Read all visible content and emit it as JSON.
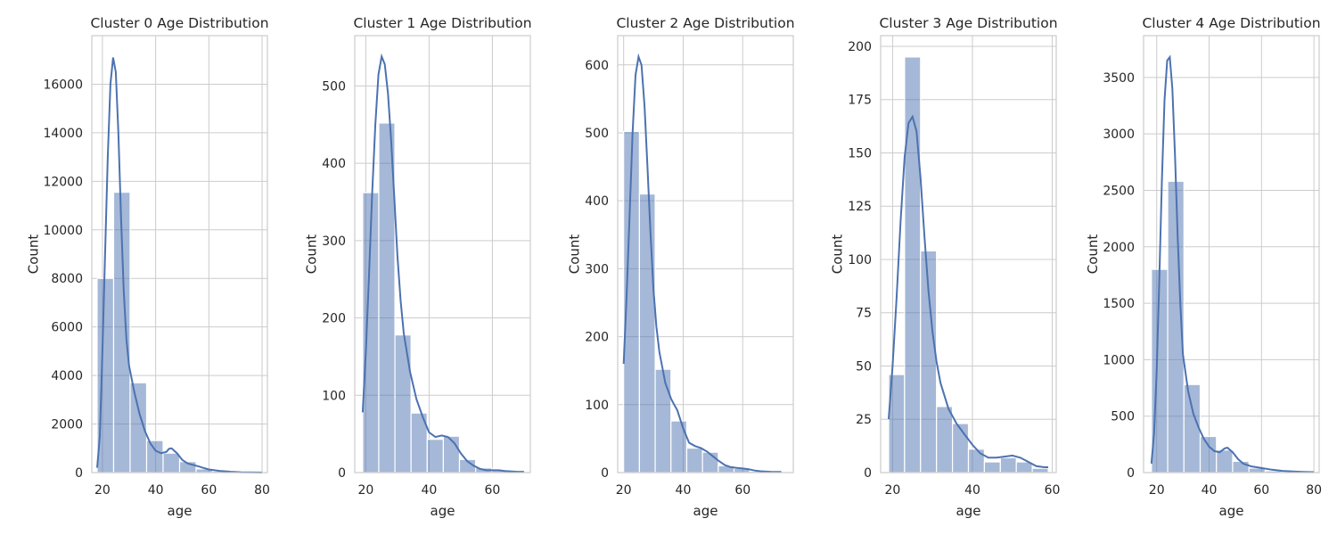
{
  "chart_data": [
    {
      "type": "bar",
      "title": "Cluster 0 Age Distribution",
      "xlabel": "age",
      "ylabel": "Count",
      "xlim": [
        16,
        82
      ],
      "ylim": [
        0,
        18000
      ],
      "xticks": [
        20,
        40,
        60,
        80
      ],
      "yticks": [
        0,
        2000,
        4000,
        6000,
        8000,
        10000,
        12000,
        14000,
        16000
      ],
      "grid": true,
      "bins": [
        [
          18,
          24.2
        ],
        [
          24.2,
          30.4
        ],
        [
          30.4,
          36.6
        ],
        [
          36.6,
          42.8
        ],
        [
          42.8,
          49
        ],
        [
          49,
          55.2
        ],
        [
          55.2,
          61.4
        ],
        [
          61.4,
          67.6
        ],
        [
          67.6,
          73.8
        ],
        [
          73.8,
          80
        ]
      ],
      "values": [
        8000,
        11550,
        3700,
        1320,
        800,
        450,
        150,
        60,
        20,
        10
      ],
      "kde": [
        [
          18,
          200
        ],
        [
          19,
          1500
        ],
        [
          20,
          5000
        ],
        [
          21,
          9000
        ],
        [
          22,
          13000
        ],
        [
          23,
          16000
        ],
        [
          24,
          17100
        ],
        [
          25,
          16500
        ],
        [
          26,
          14000
        ],
        [
          27,
          10500
        ],
        [
          28,
          7500
        ],
        [
          29,
          5500
        ],
        [
          30,
          4400
        ],
        [
          32,
          3300
        ],
        [
          34,
          2400
        ],
        [
          36,
          1700
        ],
        [
          38,
          1200
        ],
        [
          40,
          900
        ],
        [
          42,
          800
        ],
        [
          44,
          850
        ],
        [
          45,
          980
        ],
        [
          46,
          1000
        ],
        [
          48,
          800
        ],
        [
          50,
          520
        ],
        [
          52,
          380
        ],
        [
          54,
          320
        ],
        [
          56,
          260
        ],
        [
          58,
          190
        ],
        [
          60,
          130
        ],
        [
          64,
          70
        ],
        [
          68,
          35
        ],
        [
          72,
          15
        ],
        [
          76,
          8
        ],
        [
          80,
          5
        ]
      ]
    },
    {
      "type": "bar",
      "title": "Cluster 1 Age Distribution",
      "xlabel": "age",
      "ylabel": "Count",
      "xlim": [
        16.5,
        72
      ],
      "ylim": [
        0,
        565
      ],
      "xticks": [
        20,
        40,
        60
      ],
      "yticks": [
        0,
        100,
        200,
        300,
        400,
        500
      ],
      "grid": true,
      "bins": [
        [
          19,
          24.1
        ],
        [
          24.1,
          29.2
        ],
        [
          29.2,
          34.3
        ],
        [
          34.3,
          39.4
        ],
        [
          39.4,
          44.5
        ],
        [
          44.5,
          49.6
        ],
        [
          49.6,
          54.7
        ],
        [
          54.7,
          59.8
        ],
        [
          59.8,
          64.9
        ],
        [
          64.9,
          70
        ]
      ],
      "values": [
        362,
        452,
        178,
        77,
        43,
        47,
        17,
        6,
        3,
        2
      ],
      "kde": [
        [
          19,
          78
        ],
        [
          20,
          155
        ],
        [
          21,
          255
        ],
        [
          22,
          360
        ],
        [
          23,
          450
        ],
        [
          24,
          515
        ],
        [
          25,
          538
        ],
        [
          26,
          528
        ],
        [
          27,
          490
        ],
        [
          28,
          430
        ],
        [
          29,
          355
        ],
        [
          30,
          280
        ],
        [
          31,
          222
        ],
        [
          32,
          180
        ],
        [
          34,
          130
        ],
        [
          36,
          95
        ],
        [
          38,
          72
        ],
        [
          40,
          52
        ],
        [
          42,
          46
        ],
        [
          44,
          48
        ],
        [
          46,
          46
        ],
        [
          48,
          38
        ],
        [
          50,
          25
        ],
        [
          52,
          15
        ],
        [
          54,
          9
        ],
        [
          56,
          5
        ],
        [
          58,
          3
        ],
        [
          60,
          3
        ],
        [
          62,
          3
        ],
        [
          64,
          2
        ],
        [
          68,
          1
        ],
        [
          70,
          1
        ]
      ]
    },
    {
      "type": "bar",
      "title": "Cluster 2 Age Distribution",
      "xlabel": "age",
      "ylabel": "Count",
      "xlim": [
        18,
        77
      ],
      "ylim": [
        0,
        643
      ],
      "xticks": [
        20,
        40,
        60
      ],
      "yticks": [
        0,
        100,
        200,
        300,
        400,
        500,
        600
      ],
      "grid": true,
      "bins": [
        [
          20,
          25.3
        ],
        [
          25.3,
          30.6
        ],
        [
          30.6,
          35.9
        ],
        [
          35.9,
          41.2
        ],
        [
          41.2,
          46.5
        ],
        [
          46.5,
          51.8
        ],
        [
          51.8,
          57.1
        ],
        [
          57.1,
          62.4
        ],
        [
          62.4,
          67.7
        ],
        [
          67.7,
          73
        ]
      ],
      "values": [
        502,
        410,
        152,
        76,
        36,
        30,
        10,
        6,
        2,
        2
      ],
      "kde": [
        [
          20,
          160
        ],
        [
          21,
          260
        ],
        [
          22,
          380
        ],
        [
          23,
          500
        ],
        [
          24,
          585
        ],
        [
          25,
          612
        ],
        [
          26,
          600
        ],
        [
          27,
          540
        ],
        [
          28,
          450
        ],
        [
          29,
          355
        ],
        [
          30,
          270
        ],
        [
          31,
          215
        ],
        [
          32,
          178
        ],
        [
          34,
          132
        ],
        [
          36,
          108
        ],
        [
          37,
          100
        ],
        [
          38,
          92
        ],
        [
          40,
          65
        ],
        [
          42,
          44
        ],
        [
          44,
          39
        ],
        [
          46,
          36
        ],
        [
          48,
          31
        ],
        [
          50,
          24
        ],
        [
          52,
          17
        ],
        [
          54,
          11
        ],
        [
          56,
          8
        ],
        [
          58,
          7
        ],
        [
          60,
          6
        ],
        [
          62,
          5
        ],
        [
          64,
          3
        ],
        [
          66,
          2
        ],
        [
          70,
          1
        ],
        [
          73,
          1
        ]
      ]
    },
    {
      "type": "bar",
      "title": "Cluster 3 Age Distribution",
      "xlabel": "age",
      "ylabel": "Count",
      "xlim": [
        17,
        61
      ],
      "ylim": [
        0,
        205
      ],
      "xticks": [
        20,
        40,
        60
      ],
      "yticks": [
        0,
        25,
        50,
        75,
        100,
        125,
        150,
        175,
        200
      ],
      "grid": true,
      "bins": [
        [
          19,
          23
        ],
        [
          23,
          27
        ],
        [
          27,
          31
        ],
        [
          31,
          35
        ],
        [
          35,
          39
        ],
        [
          39,
          43
        ],
        [
          43,
          47
        ],
        [
          47,
          51
        ],
        [
          51,
          55
        ],
        [
          55,
          59
        ]
      ],
      "values": [
        46,
        195,
        104,
        31,
        23,
        11,
        5,
        7,
        5,
        2
      ],
      "kde": [
        [
          19,
          25
        ],
        [
          20,
          50
        ],
        [
          21,
          82
        ],
        [
          22,
          118
        ],
        [
          23,
          148
        ],
        [
          24,
          164
        ],
        [
          25,
          167
        ],
        [
          26,
          160
        ],
        [
          27,
          138
        ],
        [
          28,
          110
        ],
        [
          29,
          85
        ],
        [
          30,
          66
        ],
        [
          31,
          52
        ],
        [
          32,
          42
        ],
        [
          34,
          30
        ],
        [
          36,
          23
        ],
        [
          38,
          18
        ],
        [
          40,
          13
        ],
        [
          42,
          9
        ],
        [
          44,
          7
        ],
        [
          46,
          7
        ],
        [
          48,
          7.5
        ],
        [
          50,
          8
        ],
        [
          52,
          7
        ],
        [
          54,
          5
        ],
        [
          56,
          3
        ],
        [
          58,
          2.5
        ],
        [
          59,
          2.5
        ]
      ]
    },
    {
      "type": "bar",
      "title": "Cluster 4 Age Distribution",
      "xlabel": "age",
      "ylabel": "Count",
      "xlim": [
        15,
        82
      ],
      "ylim": [
        0,
        3870
      ],
      "xticks": [
        20,
        40,
        60,
        80
      ],
      "yticks": [
        0,
        500,
        1000,
        1500,
        2000,
        2500,
        3000,
        3500
      ],
      "grid": true,
      "bins": [
        [
          18,
          24.2
        ],
        [
          24.2,
          30.4
        ],
        [
          30.4,
          36.6
        ],
        [
          36.6,
          42.8
        ],
        [
          42.8,
          49
        ],
        [
          49,
          55.2
        ],
        [
          55.2,
          61.4
        ],
        [
          61.4,
          67.6
        ],
        [
          67.6,
          73.8
        ],
        [
          73.8,
          80
        ]
      ],
      "values": [
        1800,
        2580,
        780,
        320,
        200,
        100,
        40,
        15,
        8,
        5
      ],
      "kde": [
        [
          18,
          80
        ],
        [
          19,
          350
        ],
        [
          20,
          900
        ],
        [
          21,
          1700
        ],
        [
          22,
          2600
        ],
        [
          23,
          3300
        ],
        [
          24,
          3650
        ],
        [
          25,
          3680
        ],
        [
          26,
          3400
        ],
        [
          27,
          2800
        ],
        [
          28,
          2100
        ],
        [
          29,
          1500
        ],
        [
          30,
          1050
        ],
        [
          32,
          720
        ],
        [
          34,
          520
        ],
        [
          36,
          400
        ],
        [
          38,
          300
        ],
        [
          40,
          230
        ],
        [
          42,
          190
        ],
        [
          44,
          180
        ],
        [
          46,
          215
        ],
        [
          47,
          220
        ],
        [
          49,
          180
        ],
        [
          51,
          120
        ],
        [
          53,
          80
        ],
        [
          56,
          55
        ],
        [
          60,
          40
        ],
        [
          64,
          25
        ],
        [
          68,
          15
        ],
        [
          72,
          10
        ],
        [
          76,
          6
        ],
        [
          80,
          4
        ]
      ]
    }
  ]
}
